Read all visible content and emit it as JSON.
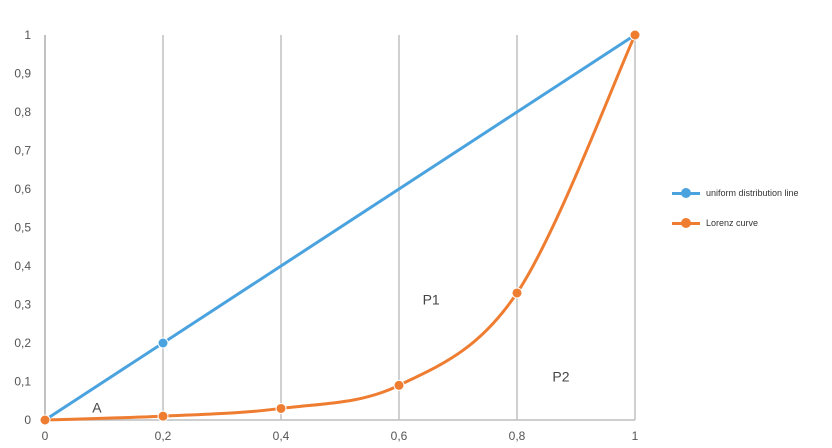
{
  "colors": {
    "uniform": "#4aa3df",
    "lorenz": "#ef7d31",
    "grid": "#d0d0d0",
    "axis": "#bdbdbd"
  },
  "chart_data": {
    "type": "line",
    "xlim": [
      0,
      1
    ],
    "ylim": [
      0,
      1
    ],
    "x_tick_labels": [
      "0",
      "0,2",
      "0,4",
      "0,6",
      "0,8",
      "1"
    ],
    "y_tick_labels": [
      "0",
      "0,1",
      "0,2",
      "0,3",
      "0,4",
      "0,5",
      "0,6",
      "0,7",
      "0,8",
      "0,9",
      "1"
    ],
    "grid": "vertical",
    "legend_position": "right",
    "series": [
      {
        "name": "uniform distribution line",
        "x": [
          0,
          0.2,
          0.4,
          0.6,
          0.8,
          1
        ],
        "values": [
          0,
          0.2,
          0.4,
          0.6,
          0.8,
          1
        ],
        "markers": [
          0,
          1
        ]
      },
      {
        "name": "Lorenz curve",
        "x": [
          0,
          0.2,
          0.4,
          0.6,
          0.8,
          1
        ],
        "values": [
          0,
          0.01,
          0.03,
          0.09,
          0.33,
          1
        ],
        "markers": [
          0,
          1,
          2,
          3,
          4,
          5
        ]
      }
    ],
    "annotations": [
      {
        "text": "A",
        "x": 0.08,
        "y": 0.02
      },
      {
        "text": "P1",
        "x": 0.64,
        "y": 0.3
      },
      {
        "text": "P2",
        "x": 0.86,
        "y": 0.1
      }
    ]
  }
}
